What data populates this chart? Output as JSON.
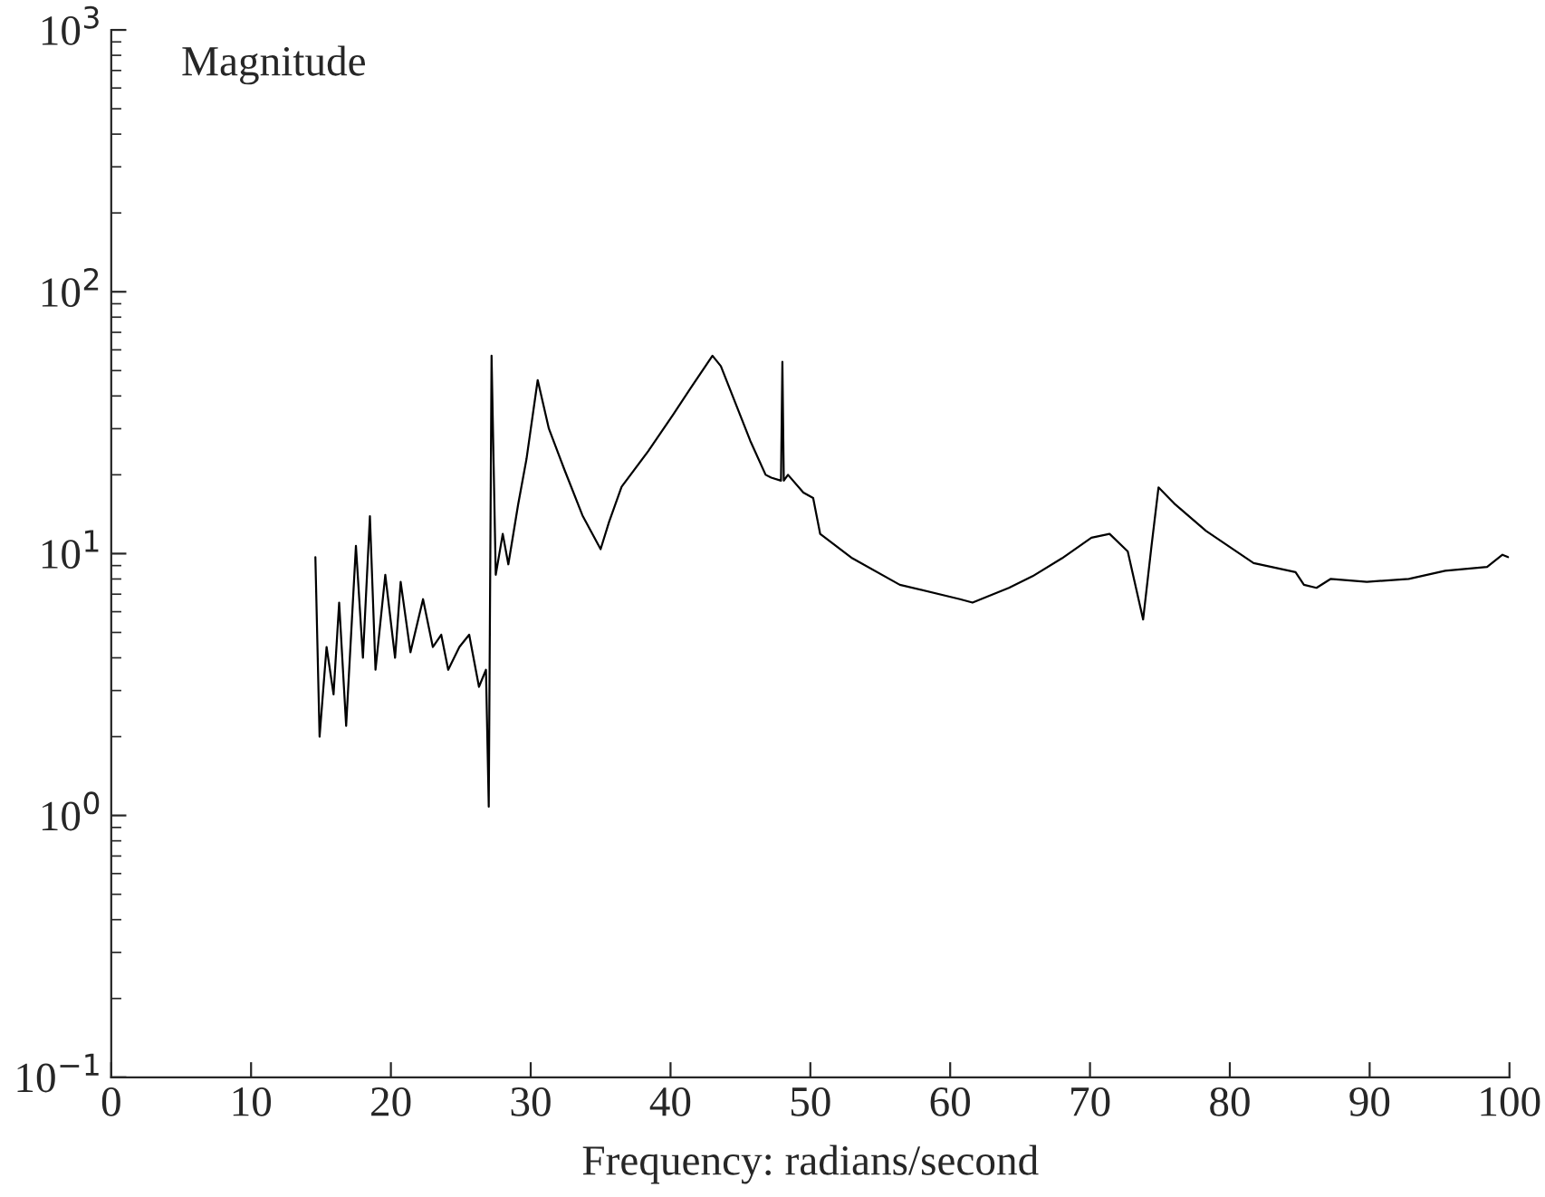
{
  "chart_data": {
    "type": "line",
    "ylabel": "Magnitude",
    "xlabel": "Frequency: radians/second",
    "log": "y",
    "xlim": [
      0,
      100
    ],
    "xticks": [
      0,
      10,
      20,
      30,
      40,
      50,
      60,
      70,
      80,
      90,
      100
    ],
    "ylim": [
      0.1,
      1000
    ],
    "yticks": [
      {
        "value": 0.1,
        "label": "10$^{−1}$"
      },
      {
        "value": 1,
        "label": "10$^{0}$"
      },
      {
        "value": 10,
        "label": "10$^{1}$"
      },
      {
        "value": 100,
        "label": "10$^{2}$"
      },
      {
        "value": 1000,
        "label": "10$^{3}$"
      }
    ],
    "grid": false,
    "legend": false,
    "series": [
      {
        "color": "#000000",
        "x": [
          14.6,
          14.9,
          15.4,
          15.9,
          16.3,
          16.8,
          17.5,
          18.0,
          18.5,
          18.9,
          19.6,
          20.3,
          20.7,
          21.4,
          22.3,
          23.0,
          23.6,
          24.1,
          24.9,
          25.6,
          26.3,
          26.8,
          27.0,
          27.2,
          27.5,
          28.0,
          28.4,
          29.1,
          29.7,
          30.5,
          31.3,
          32.4,
          33.7,
          35.0,
          35.6,
          36.5,
          38.4,
          40.2,
          41.7,
          43.0,
          43.6,
          45.7,
          46.8,
          47.2,
          47.9,
          48.0,
          48.1,
          48.4,
          49.5,
          50.2,
          50.7,
          53.0,
          56.4,
          60.7,
          61.6,
          64.2,
          65.9,
          68.0,
          70.1,
          71.4,
          72.7,
          73.8,
          74.4,
          74.9,
          76.1,
          78.3,
          81.7,
          84.7,
          85.3,
          86.2,
          87.2,
          89.8,
          92.8,
          95.4,
          98.4,
          99.5,
          99.9
        ],
        "values": [
          9.7,
          2.0,
          4.4,
          2.9,
          6.5,
          2.2,
          10.7,
          4.0,
          13.9,
          3.6,
          8.3,
          4.0,
          7.8,
          4.2,
          6.7,
          4.4,
          4.9,
          3.6,
          4.4,
          4.9,
          3.1,
          3.6,
          1.08,
          57,
          8.3,
          11.9,
          9.1,
          15.4,
          23,
          46,
          30,
          21,
          14,
          10.4,
          13.2,
          18,
          24.6,
          34,
          45,
          57,
          52,
          27,
          20,
          19.5,
          19,
          54,
          19,
          20,
          17.1,
          16.3,
          11.9,
          9.6,
          7.6,
          6.7,
          6.5,
          7.4,
          8.2,
          9.6,
          11.5,
          11.9,
          10.2,
          5.6,
          10.7,
          17.9,
          15.4,
          12.2,
          9.2,
          8.5,
          7.6,
          7.4,
          8.0,
          7.8,
          8.0,
          8.6,
          8.9,
          9.9,
          9.7
        ]
      }
    ]
  }
}
